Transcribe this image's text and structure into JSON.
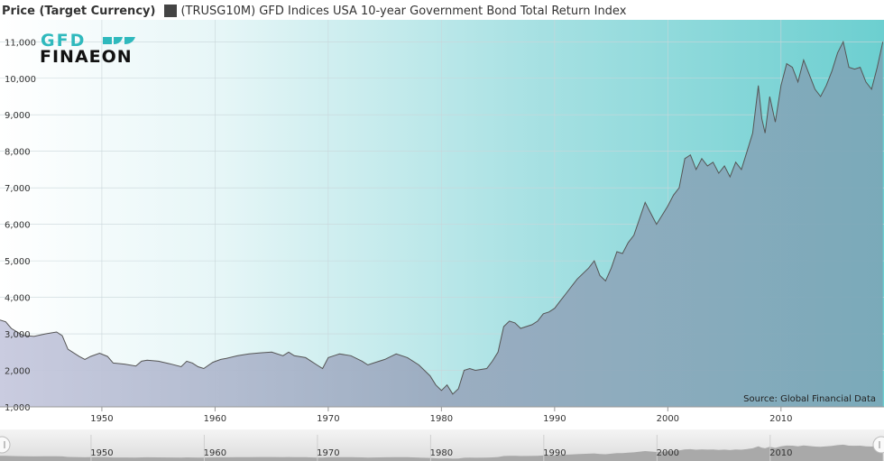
{
  "header": {
    "title": "Price (Target Currency)",
    "series_label": "(TRUSG10M) GFD Indices USA 10-year Government Bond Total Return Index"
  },
  "logo": {
    "line1": "GFD",
    "line2": "FINAEON"
  },
  "source": "Source: Global Financial Data",
  "colors": {
    "area_fill": "#8a9cb0",
    "line": "#555555",
    "bg_left": "#ffffff",
    "bg_right": "#6ccfd0"
  },
  "chart_data": {
    "type": "area",
    "title": "",
    "xlabel": "",
    "ylabel": "",
    "xlim": [
      1941,
      2019.1
    ],
    "ylim": [
      1000,
      11600
    ],
    "y_ticks": [
      1000,
      2000,
      3000,
      4000,
      5000,
      6000,
      7000,
      8000,
      9000,
      10000,
      11000
    ],
    "y_tick_labels": [
      "1,000",
      "2,000",
      "3,000",
      "4,000",
      "5,000",
      "6,000",
      "7,000",
      "8,000",
      "9,000",
      "10,000",
      "11,000"
    ],
    "x_ticks": [
      1950,
      1960,
      1970,
      1980,
      1990,
      2000,
      2010
    ],
    "x_tick_labels": [
      "1950",
      "1960",
      "1970",
      "1980",
      "1990",
      "2000",
      "2010"
    ],
    "grid": true,
    "series": [
      {
        "x": [
          1941,
          1941.5,
          1942,
          1943,
          1944,
          1945,
          1946,
          1946.5,
          1947,
          1948,
          1948.5,
          1949,
          1949.8,
          1950.5,
          1951,
          1952,
          1953,
          1953.5,
          1954,
          1955,
          1956,
          1957,
          1957.5,
          1958,
          1958.5,
          1959,
          1959.8,
          1960.5,
          1961,
          1962,
          1963,
          1964,
          1965,
          1966,
          1966.5,
          1967,
          1968,
          1969,
          1969.5,
          1970,
          1970.5,
          1971,
          1972,
          1973,
          1973.5,
          1974,
          1975,
          1976,
          1977,
          1978,
          1979,
          1979.5,
          1980,
          1980.5,
          1981,
          1981.5,
          1982,
          1982.5,
          1983,
          1984,
          1984.5,
          1985,
          1985.5,
          1986,
          1986.5,
          1987,
          1988,
          1988.5,
          1989,
          1989.5,
          1990,
          1990.5,
          1991,
          1992,
          1993,
          1993.5,
          1994,
          1994.5,
          1995,
          1995.5,
          1996,
          1996.5,
          1997,
          1998,
          1998.5,
          1999,
          1999.5,
          2000,
          2000.5,
          2001,
          2001.5,
          2002,
          2002.5,
          2003,
          2003.5,
          2004,
          2004.5,
          2005,
          2005.5,
          2006,
          2006.5,
          2007,
          2007.5,
          2008,
          2008.3,
          2008.6,
          2009,
          2009.5,
          2010,
          2010.5,
          2011,
          2011.5,
          2012,
          2012.5,
          2013,
          2013.5,
          2014,
          2014.5,
          2015,
          2015.5,
          2016,
          2016.5,
          2017,
          2017.5,
          2018,
          2018.5,
          2019
        ],
        "values": [
          3380,
          3330,
          3150,
          2960,
          2930,
          3000,
          3050,
          2950,
          2580,
          2380,
          2300,
          2380,
          2470,
          2380,
          2200,
          2170,
          2120,
          2250,
          2280,
          2250,
          2180,
          2100,
          2250,
          2200,
          2100,
          2050,
          2220,
          2300,
          2330,
          2400,
          2450,
          2480,
          2500,
          2400,
          2500,
          2400,
          2350,
          2150,
          2050,
          2350,
          2400,
          2450,
          2400,
          2250,
          2150,
          2200,
          2300,
          2450,
          2350,
          2150,
          1850,
          1600,
          1450,
          1600,
          1350,
          1500,
          2000,
          2050,
          2000,
          2050,
          2250,
          2500,
          3200,
          3350,
          3300,
          3150,
          3250,
          3350,
          3550,
          3600,
          3700,
          3900,
          4100,
          4500,
          4800,
          5000,
          4600,
          4450,
          4800,
          5250,
          5200,
          5500,
          5700,
          6600,
          6300,
          6000,
          6250,
          6500,
          6800,
          7000,
          7800,
          7900,
          7500,
          7800,
          7600,
          7700,
          7400,
          7600,
          7300,
          7700,
          7500,
          8000,
          8500,
          9800,
          8900,
          8500,
          9500,
          8800,
          9800,
          10400,
          10300,
          9900,
          10500,
          10100,
          9700,
          9500,
          9800,
          10200,
          10700,
          11000,
          10300,
          10250,
          10300,
          9900,
          9700,
          10300,
          11000
        ]
      }
    ]
  }
}
